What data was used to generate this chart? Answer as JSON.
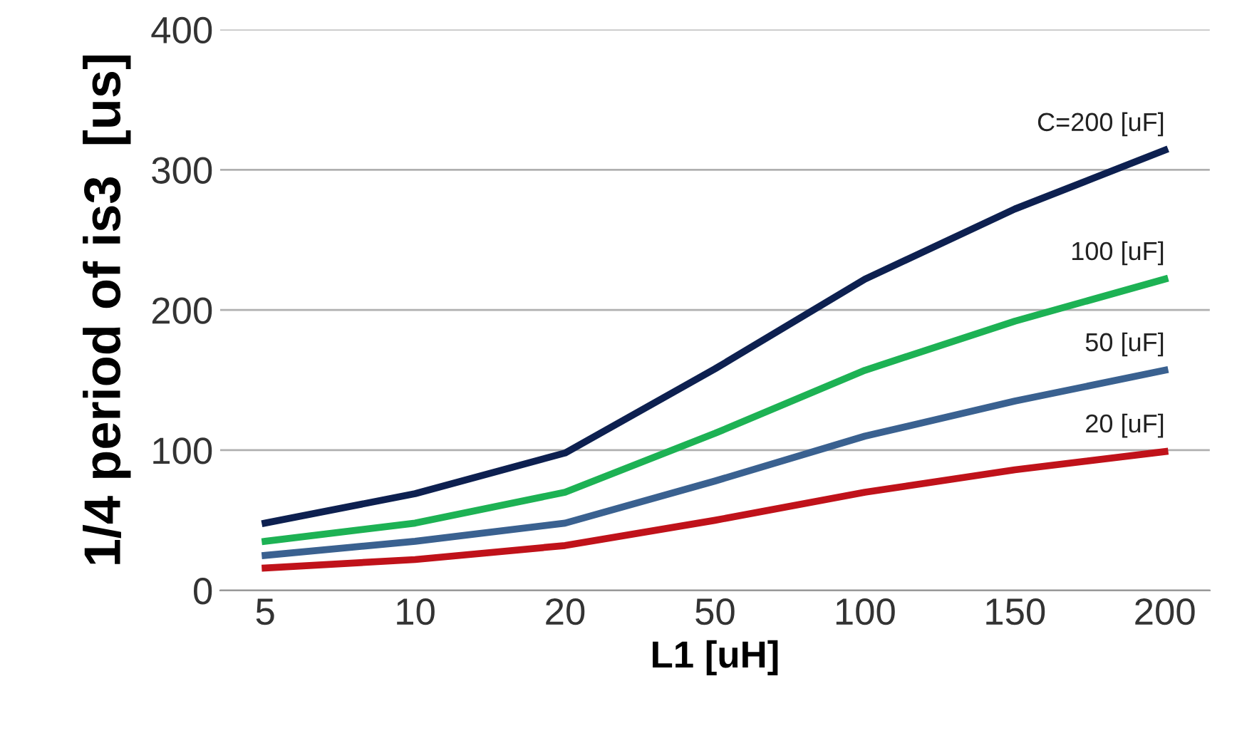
{
  "chart_data": {
    "type": "line",
    "xlabel": "L1 [uH]",
    "ylabel": "1/4 period of is3  [us]",
    "categories": [
      "5",
      "10",
      "20",
      "50",
      "100",
      "150",
      "200"
    ],
    "series": [
      {
        "name": "C=200 [uF]",
        "color": "#0d2050",
        "values": [
          48,
          69,
          98,
          158,
          222,
          272,
          314
        ]
      },
      {
        "name": "100 [uF]",
        "color": "#1db254",
        "values": [
          35,
          48,
          70,
          112,
          157,
          192,
          222
        ]
      },
      {
        "name": "50 [uF]",
        "color": "#3a6190",
        "values": [
          25,
          35,
          48,
          78,
          110,
          135,
          157
        ]
      },
      {
        "name": "20 [uF]",
        "color": "#c0121a",
        "values": [
          16,
          22,
          32,
          50,
          70,
          86,
          99
        ]
      }
    ],
    "ylim": [
      0,
      400
    ],
    "yticks": [
      0,
      100,
      200,
      300,
      400
    ],
    "grid": "y",
    "marker": "none",
    "line_style": "solid"
  }
}
